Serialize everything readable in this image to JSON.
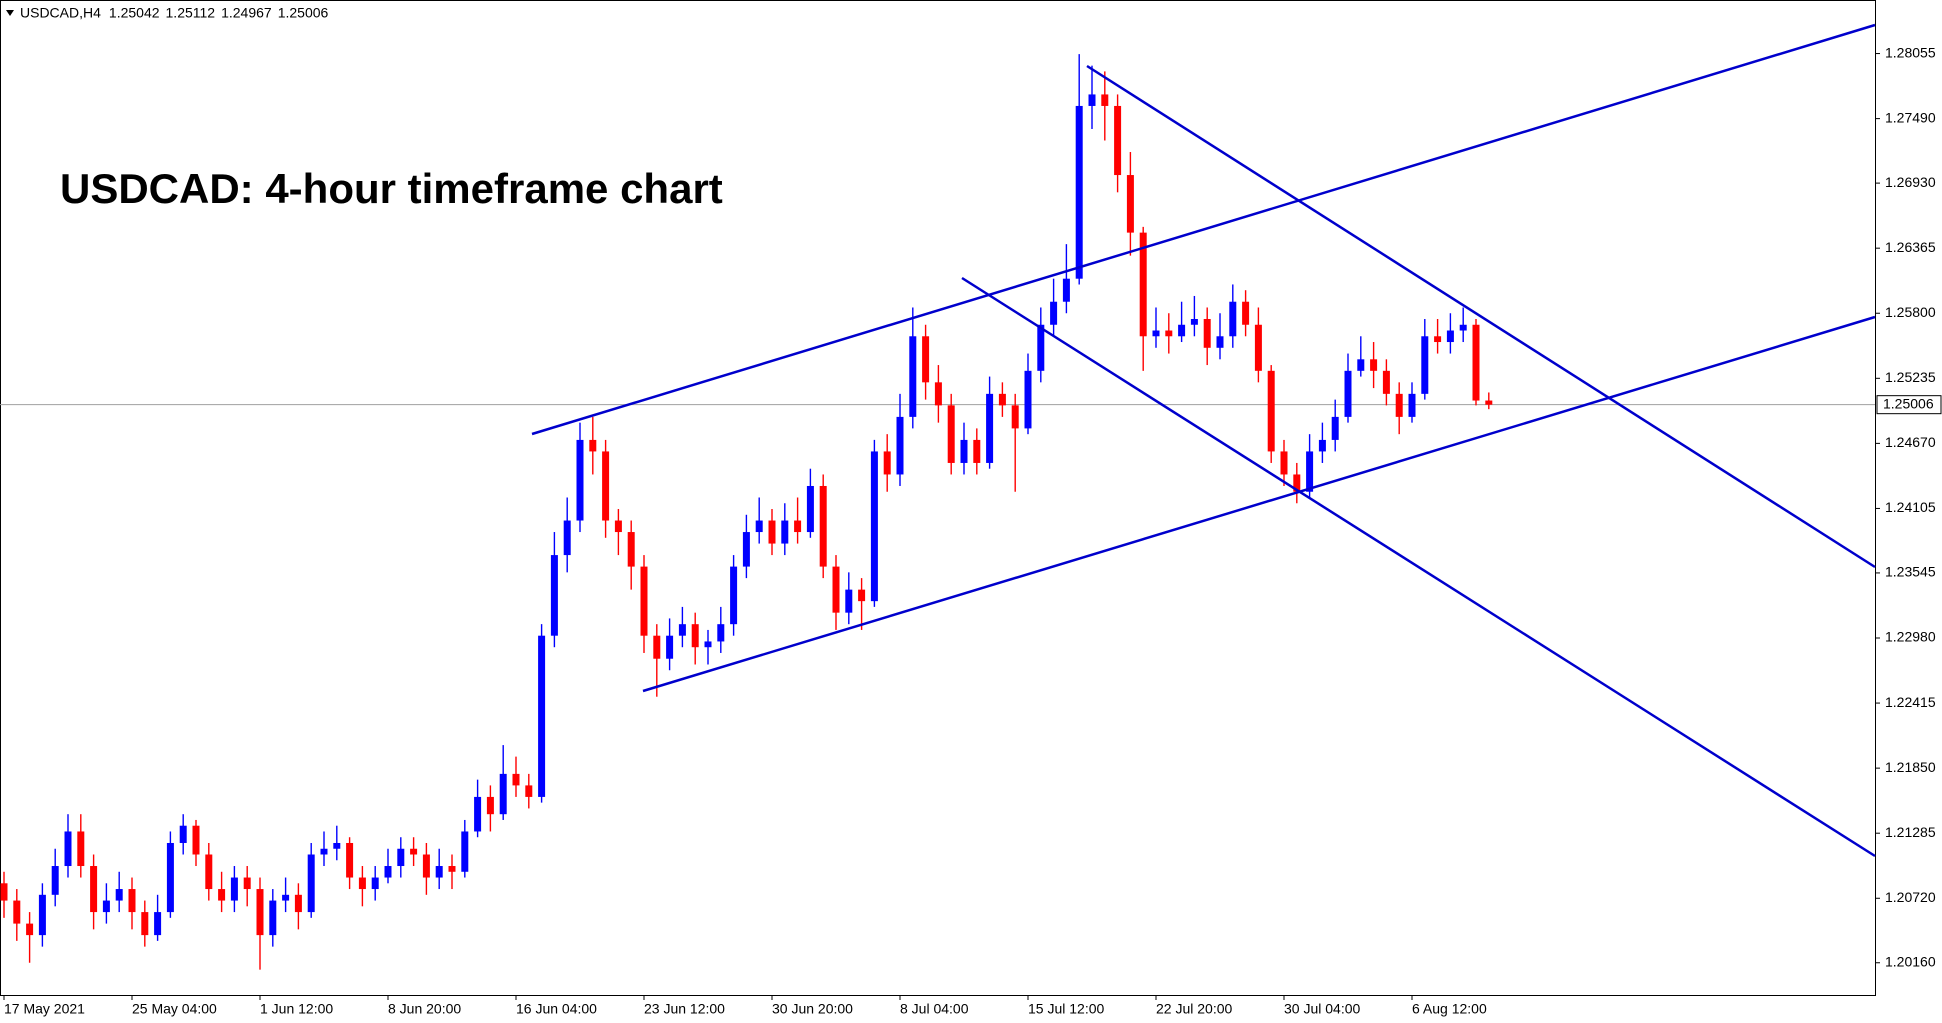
{
  "chart_data": {
    "type": "candlestick",
    "title": "USDCAD: 4-hour timeframe chart",
    "symbol": "USDCAD,H4",
    "up_color": "#0000ff",
    "down_color": "#ff0000",
    "ylim": [
      1.1988,
      1.2852
    ],
    "yticks": [
      1.28055,
      {
        "value": 1.2749,
        "label": "1.27490"
      },
      {
        "value": 1.2693,
        "label": "1.26930"
      },
      1.26365,
      {
        "value": 1.258,
        "label": "1.25800"
      },
      1.25235,
      {
        "value": 1.2467,
        "label": "1.24670"
      },
      1.24105,
      1.23545,
      {
        "value": 1.2298,
        "label": "1.22980"
      },
      1.22415,
      {
        "value": 1.2185,
        "label": "1.21850"
      },
      1.21285,
      {
        "value": 1.2072,
        "label": "1.20720"
      },
      {
        "value": 1.2016,
        "label": "1.20160"
      }
    ],
    "categories": [
      "17 May 2021",
      null,
      null,
      null,
      null,
      null,
      null,
      null,
      null,
      null,
      "25 May 04:00",
      null,
      null,
      null,
      null,
      null,
      null,
      null,
      null,
      null,
      "1 Jun 12:00",
      null,
      null,
      null,
      null,
      null,
      null,
      null,
      null,
      null,
      "8 Jun 20:00",
      null,
      null,
      null,
      null,
      null,
      null,
      null,
      null,
      null,
      "16 Jun 04:00",
      null,
      null,
      null,
      null,
      null,
      null,
      null,
      null,
      null,
      "23 Jun 12:00",
      null,
      null,
      null,
      null,
      null,
      null,
      null,
      null,
      null,
      "30 Jun 20:00",
      null,
      null,
      null,
      null,
      null,
      null,
      null,
      null,
      null,
      "8 Jul 04:00",
      null,
      null,
      null,
      null,
      null,
      null,
      null,
      null,
      null,
      "15 Jul 12:00",
      null,
      null,
      null,
      null,
      null,
      null,
      null,
      null,
      null,
      "22 Jul 20:00",
      null,
      null,
      null,
      null,
      null,
      null,
      null,
      null,
      null,
      "30 Jul 04:00",
      null,
      null,
      null,
      null,
      null,
      null,
      null,
      null,
      null,
      "6 Aug 12:00",
      null,
      null,
      null,
      null,
      null,
      null
    ],
    "ohlc": [
      [
        1.2085,
        1.2095,
        1.2055,
        1.207
      ],
      [
        1.207,
        1.208,
        1.2035,
        1.205
      ],
      [
        1.205,
        1.206,
        1.2016,
        1.204
      ],
      [
        1.204,
        1.2085,
        1.203,
        1.2075
      ],
      [
        1.2075,
        1.2115,
        1.2065,
        1.21
      ],
      [
        1.21,
        1.2145,
        1.209,
        1.213
      ],
      [
        1.213,
        1.2145,
        1.209,
        1.21
      ],
      [
        1.21,
        1.211,
        1.2045,
        1.206
      ],
      [
        1.206,
        1.2085,
        1.205,
        1.207
      ],
      [
        1.207,
        1.2095,
        1.206,
        1.208
      ],
      [
        1.208,
        1.209,
        1.2045,
        1.206
      ],
      [
        1.206,
        1.207,
        1.203,
        1.204
      ],
      [
        1.204,
        1.2075,
        1.2035,
        1.206
      ],
      [
        1.206,
        1.213,
        1.2055,
        1.212
      ],
      [
        1.212,
        1.2145,
        1.211,
        1.2135
      ],
      [
        1.2135,
        1.214,
        1.21,
        1.211
      ],
      [
        1.211,
        1.212,
        1.207,
        1.208
      ],
      [
        1.208,
        1.2095,
        1.206,
        1.207
      ],
      [
        1.207,
        1.21,
        1.206,
        1.209
      ],
      [
        1.209,
        1.21,
        1.2065,
        1.208
      ],
      [
        1.208,
        1.209,
        1.201,
        1.204
      ],
      [
        1.204,
        1.208,
        1.203,
        1.207
      ],
      [
        1.207,
        1.209,
        1.206,
        1.2075
      ],
      [
        1.2075,
        1.2085,
        1.2045,
        1.206
      ],
      [
        1.206,
        1.212,
        1.2055,
        1.211
      ],
      [
        1.211,
        1.213,
        1.21,
        1.2115
      ],
      [
        1.2115,
        1.2135,
        1.2105,
        1.212
      ],
      [
        1.212,
        1.2125,
        1.208,
        1.209
      ],
      [
        1.209,
        1.21,
        1.2065,
        1.208
      ],
      [
        1.208,
        1.21,
        1.207,
        1.209
      ],
      [
        1.209,
        1.2115,
        1.2085,
        1.21
      ],
      [
        1.21,
        1.2125,
        1.209,
        1.2115
      ],
      [
        1.2115,
        1.2125,
        1.21,
        1.211
      ],
      [
        1.211,
        1.212,
        1.2075,
        1.209
      ],
      [
        1.209,
        1.2115,
        1.208,
        1.21
      ],
      [
        1.21,
        1.211,
        1.208,
        1.2095
      ],
      [
        1.2095,
        1.214,
        1.209,
        1.213
      ],
      [
        1.213,
        1.2175,
        1.2125,
        1.216
      ],
      [
        1.216,
        1.217,
        1.213,
        1.2145
      ],
      [
        1.2145,
        1.2205,
        1.214,
        1.218
      ],
      [
        1.218,
        1.2195,
        1.216,
        1.217
      ],
      [
        1.217,
        1.218,
        1.215,
        1.216
      ],
      [
        1.216,
        1.231,
        1.2155,
        1.23
      ],
      [
        1.23,
        1.239,
        1.229,
        1.237
      ],
      [
        1.237,
        1.242,
        1.2355,
        1.24
      ],
      [
        1.24,
        1.2485,
        1.239,
        1.247
      ],
      [
        1.247,
        1.249,
        1.244,
        1.246
      ],
      [
        1.246,
        1.247,
        1.2385,
        1.24
      ],
      [
        1.24,
        1.241,
        1.237,
        1.239
      ],
      [
        1.239,
        1.24,
        1.234,
        1.236
      ],
      [
        1.236,
        1.237,
        1.2285,
        1.23
      ],
      [
        1.23,
        1.231,
        1.2247,
        1.228
      ],
      [
        1.228,
        1.2315,
        1.227,
        1.23
      ],
      [
        1.23,
        1.2325,
        1.229,
        1.231
      ],
      [
        1.231,
        1.232,
        1.2275,
        1.229
      ],
      [
        1.229,
        1.2305,
        1.2275,
        1.2295
      ],
      [
        1.2295,
        1.2325,
        1.2285,
        1.231
      ],
      [
        1.231,
        1.237,
        1.23,
        1.236
      ],
      [
        1.236,
        1.2405,
        1.235,
        1.239
      ],
      [
        1.239,
        1.242,
        1.238,
        1.24
      ],
      [
        1.24,
        1.241,
        1.237,
        1.238
      ],
      [
        1.238,
        1.2415,
        1.237,
        1.24
      ],
      [
        1.24,
        1.242,
        1.238,
        1.239
      ],
      [
        1.239,
        1.2445,
        1.2385,
        1.243
      ],
      [
        1.243,
        1.244,
        1.235,
        1.236
      ],
      [
        1.236,
        1.237,
        1.2305,
        1.232
      ],
      [
        1.232,
        1.2355,
        1.231,
        1.234
      ],
      [
        1.234,
        1.235,
        1.2305,
        1.233
      ],
      [
        1.233,
        1.247,
        1.2325,
        1.246
      ],
      [
        1.246,
        1.2475,
        1.2425,
        1.244
      ],
      [
        1.244,
        1.251,
        1.243,
        1.249
      ],
      [
        1.249,
        1.2585,
        1.248,
        1.256
      ],
      [
        1.256,
        1.257,
        1.2505,
        1.252
      ],
      [
        1.252,
        1.2535,
        1.2485,
        1.25
      ],
      [
        1.25,
        1.251,
        1.244,
        1.245
      ],
      [
        1.245,
        1.2485,
        1.244,
        1.247
      ],
      [
        1.247,
        1.248,
        1.244,
        1.245
      ],
      [
        1.245,
        1.2525,
        1.2445,
        1.251
      ],
      [
        1.251,
        1.252,
        1.249,
        1.25
      ],
      [
        1.25,
        1.251,
        1.2425,
        1.248
      ],
      [
        1.248,
        1.2545,
        1.2475,
        1.253
      ],
      [
        1.253,
        1.2585,
        1.252,
        1.257
      ],
      [
        1.257,
        1.261,
        1.256,
        1.259
      ],
      [
        1.259,
        1.264,
        1.258,
        1.261
      ],
      [
        1.261,
        1.2805,
        1.2605,
        1.276
      ],
      [
        1.276,
        1.2795,
        1.274,
        1.277
      ],
      [
        1.277,
        1.279,
        1.273,
        1.276
      ],
      [
        1.276,
        1.277,
        1.2685,
        1.27
      ],
      [
        1.27,
        1.272,
        1.263,
        1.265
      ],
      [
        1.265,
        1.2655,
        1.253,
        1.256
      ],
      [
        1.256,
        1.2585,
        1.255,
        1.2565
      ],
      [
        1.2565,
        1.258,
        1.2545,
        1.256
      ],
      [
        1.256,
        1.259,
        1.2555,
        1.257
      ],
      [
        1.257,
        1.2595,
        1.256,
        1.2575
      ],
      [
        1.2575,
        1.2585,
        1.2535,
        1.255
      ],
      [
        1.255,
        1.258,
        1.254,
        1.256
      ],
      [
        1.256,
        1.2605,
        1.255,
        1.259
      ],
      [
        1.259,
        1.26,
        1.256,
        1.257
      ],
      [
        1.257,
        1.2585,
        1.252,
        1.253
      ],
      [
        1.253,
        1.2535,
        1.245,
        1.246
      ],
      [
        1.246,
        1.247,
        1.243,
        1.244
      ],
      [
        1.244,
        1.245,
        1.2415,
        1.2425
      ],
      [
        1.2425,
        1.2475,
        1.242,
        1.246
      ],
      [
        1.246,
        1.2485,
        1.245,
        1.247
      ],
      [
        1.247,
        1.2505,
        1.246,
        1.249
      ],
      [
        1.249,
        1.2545,
        1.2485,
        1.253
      ],
      [
        1.253,
        1.256,
        1.2525,
        1.254
      ],
      [
        1.254,
        1.2555,
        1.2515,
        1.253
      ],
      [
        1.253,
        1.254,
        1.25,
        1.251
      ],
      [
        1.251,
        1.252,
        1.2475,
        1.249
      ],
      [
        1.249,
        1.252,
        1.2485,
        1.251
      ],
      [
        1.251,
        1.2575,
        1.2505,
        1.256
      ],
      [
        1.256,
        1.2575,
        1.2545,
        1.2555
      ],
      [
        1.2555,
        1.258,
        1.2545,
        1.2565
      ],
      [
        1.2565,
        1.2585,
        1.2555,
        1.257
      ],
      [
        1.257,
        1.2575,
        1.25,
        1.25042
      ],
      [
        1.25042,
        1.25112,
        1.24967,
        1.25006
      ]
    ]
  }
}
